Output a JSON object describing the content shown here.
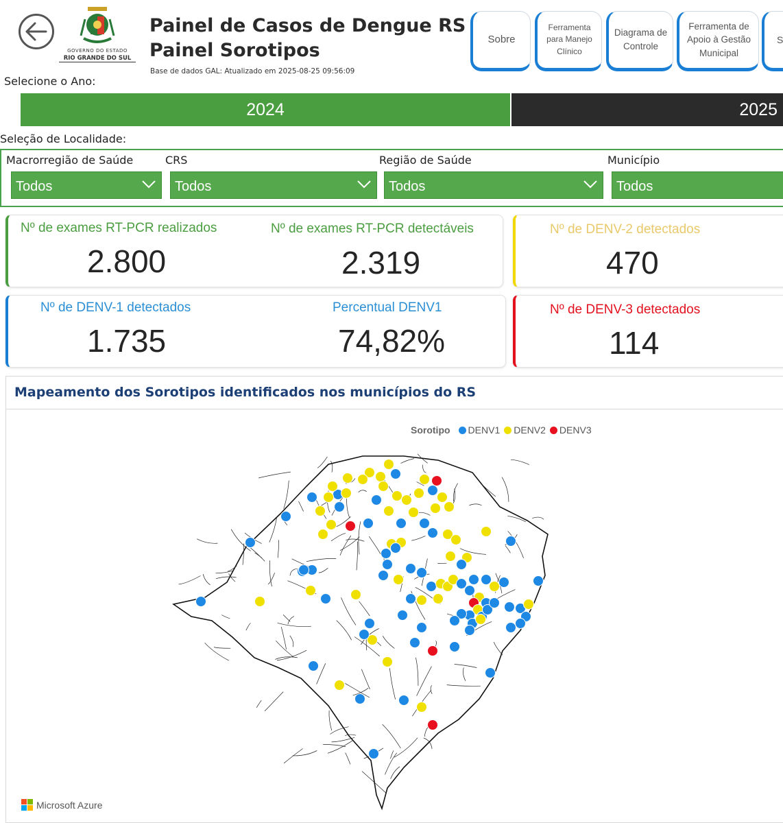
{
  "header": {
    "title_line1": "Painel de Casos de Dengue RS",
    "title_line2": "Painel Sorotipos",
    "updated": "Base de dados GAL: Atualizado em 2025-08-25 09:56:09",
    "logo_line1": "GOVERNO DO ESTADO",
    "logo_line2": "RIO GRANDE DO SUL"
  },
  "nav": {
    "sobre": "Sobre",
    "manejo": "Ferramenta para Manejo Clínico",
    "diagrama": "Diagrama de Controle",
    "apoio": "Ferramenta de Apoio à Gestão Municipal",
    "partial": "So"
  },
  "year": {
    "label": "Selecione o Ano:",
    "options": [
      "2024",
      "2025"
    ],
    "selected": "2024"
  },
  "filters": {
    "label": "Seleção de Localidade:",
    "macro": {
      "title": "Macrorregião de Saúde",
      "value": "Todos"
    },
    "crs": {
      "title": "CRS",
      "value": "Todos"
    },
    "regiao": {
      "title": "Região de Saúde",
      "value": "Todos"
    },
    "municipio": {
      "title": "Município",
      "value": "Todos"
    }
  },
  "kpis": {
    "exames_realizados": {
      "label": "Nº de exames RT-PCR realizados",
      "value": "2.800"
    },
    "exames_detectaveis": {
      "label": "Nº de exames RT-PCR detectáveis",
      "value": "2.319"
    },
    "denv2": {
      "label": "Nº de DENV-2 detectados",
      "value": "470"
    },
    "denv1": {
      "label": "Nº de DENV-1 detectados",
      "value": "1.735"
    },
    "perc_denv1": {
      "label": "Percentual DENV1",
      "value": "74,82%"
    },
    "denv3": {
      "label": "Nº de DENV-3 detectados",
      "value": "114"
    }
  },
  "map": {
    "title": "Mapeamento dos Sorotipos identificados nos municípios do RS",
    "legend_title": "Sorotipo",
    "legend": [
      {
        "name": "DENV1",
        "color": "#1e88e5"
      },
      {
        "name": "DENV2",
        "color": "#f0e000"
      },
      {
        "name": "DENV3",
        "color": "#e8101e"
      }
    ],
    "attribution": "Microsoft Azure"
  },
  "colors": {
    "green": "#4a9e40",
    "dark": "#2b2b2b",
    "accent_blue": "#1a7fd4",
    "denv2_label": "#e9c96a",
    "denv1_label": "#2b8fd6",
    "denv3_label": "#e3101e"
  }
}
